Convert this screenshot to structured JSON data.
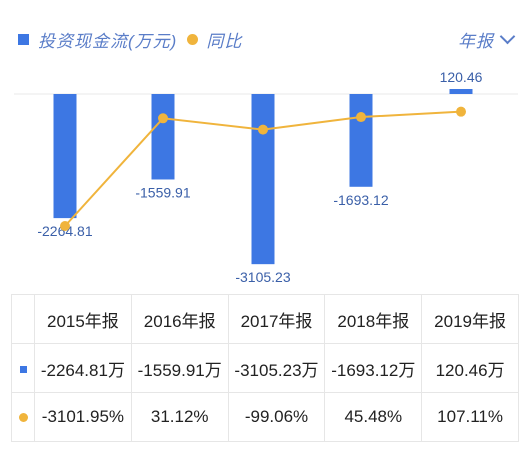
{
  "legend": {
    "bar_series": "投资现金流(万元)",
    "line_series": "同比"
  },
  "period_selector": {
    "label": "年报"
  },
  "colors": {
    "bar": "#3d77e3",
    "line": "#f0b43c",
    "positive": "#e0474e",
    "negative": "#27a462"
  },
  "chart_data": {
    "type": "bar",
    "categories": [
      "2015年报",
      "2016年报",
      "2017年报",
      "2018年报",
      "2019年报"
    ],
    "series": [
      {
        "name": "投资现金流(万元)",
        "type": "bar",
        "values": [
          -2264.81,
          -1559.91,
          -3105.23,
          -1693.12,
          120.46
        ]
      },
      {
        "name": "同比",
        "type": "line",
        "values": [
          -3101.95,
          31.12,
          -99.06,
          45.48,
          107.11
        ],
        "unit": "%"
      }
    ],
    "data_labels": [
      "-2264.81",
      "-1559.91",
      "-3105.23",
      "-1693.12",
      "120.46"
    ],
    "legend_position": "top-left"
  },
  "table": {
    "headers": [
      "2015年报",
      "2016年报",
      "2017年报",
      "2018年报",
      "2019年报"
    ],
    "rows": [
      {
        "marker": "bar",
        "cells": [
          "-2264.81万",
          "-1559.91万",
          "-3105.23万",
          "-1693.12万",
          "120.46万"
        ]
      },
      {
        "marker": "line",
        "cells": [
          "-3101.95%",
          "31.12%",
          "-99.06%",
          "45.48%",
          "107.11%"
        ]
      }
    ]
  }
}
